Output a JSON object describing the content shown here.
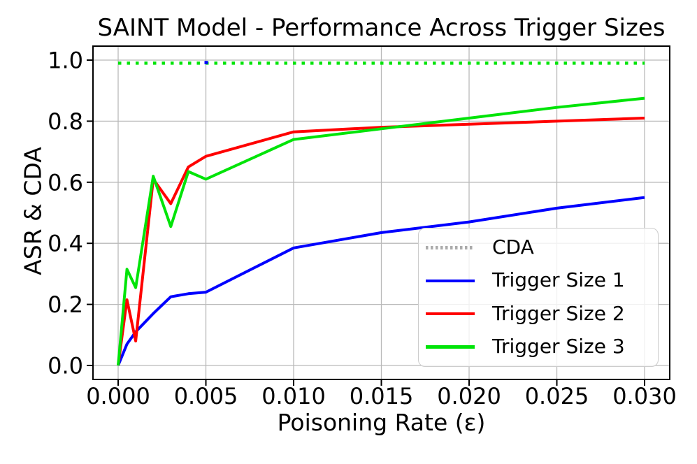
{
  "figure": {
    "title": "SAINT Model - Performance Across Trigger Sizes"
  },
  "chart_data": {
    "type": "line",
    "title": "SAINT Model - Performance Across Trigger Sizes",
    "xlabel": "Poisoning Rate (ε)",
    "ylabel": "ASR & CDA",
    "xlim": [
      -0.0015,
      0.0315
    ],
    "ylim": [
      -0.045,
      1.045
    ],
    "grid": true,
    "grid_color": "#b9b9b9",
    "axis_color": "#000000",
    "legend_position": "lower right",
    "xticks": {
      "values": [
        0,
        0.005,
        0.01,
        0.015,
        0.02,
        0.025,
        0.03
      ],
      "labels": [
        "0.000",
        "0.005",
        "0.010",
        "0.015",
        "0.020",
        "0.025",
        "0.030"
      ]
    },
    "yticks": {
      "values": [
        0,
        0.2,
        0.4,
        0.6,
        0.8,
        1.0
      ],
      "labels": [
        "0.0",
        "0.2",
        "0.4",
        "0.6",
        "0.8",
        "1.0"
      ]
    },
    "x": [
      0,
      0.0005,
      0.001,
      0.002,
      0.003,
      0.004,
      0.005,
      0.01,
      0.015,
      0.02,
      0.025,
      0.03
    ],
    "series": [
      {
        "name": "CDA",
        "color": "#00e408",
        "legend_key_color": "#ababab",
        "line_style": "dotted",
        "x": [
          0,
          0.03
        ],
        "values": [
          0.99,
          0.99
        ]
      },
      {
        "name": "Trigger Size 1",
        "color": "#0000ff",
        "line_style": "solid",
        "values": [
          0,
          0.07,
          0.11,
          0.17,
          0.225,
          0.235,
          0.24,
          0.385,
          0.435,
          0.47,
          0.515,
          0.55
        ]
      },
      {
        "name": "Trigger Size 2",
        "color": "#ff0000",
        "line_style": "solid",
        "values": [
          0,
          0.215,
          0.08,
          0.61,
          0.53,
          0.65,
          0.685,
          0.765,
          0.78,
          0.79,
          0.8,
          0.81
        ]
      },
      {
        "name": "Trigger Size 3",
        "color": "#00e408",
        "line_style": "solid",
        "values": [
          0,
          0.315,
          0.255,
          0.62,
          0.455,
          0.635,
          0.61,
          0.74,
          0.775,
          0.81,
          0.845,
          0.875
        ]
      }
    ]
  }
}
